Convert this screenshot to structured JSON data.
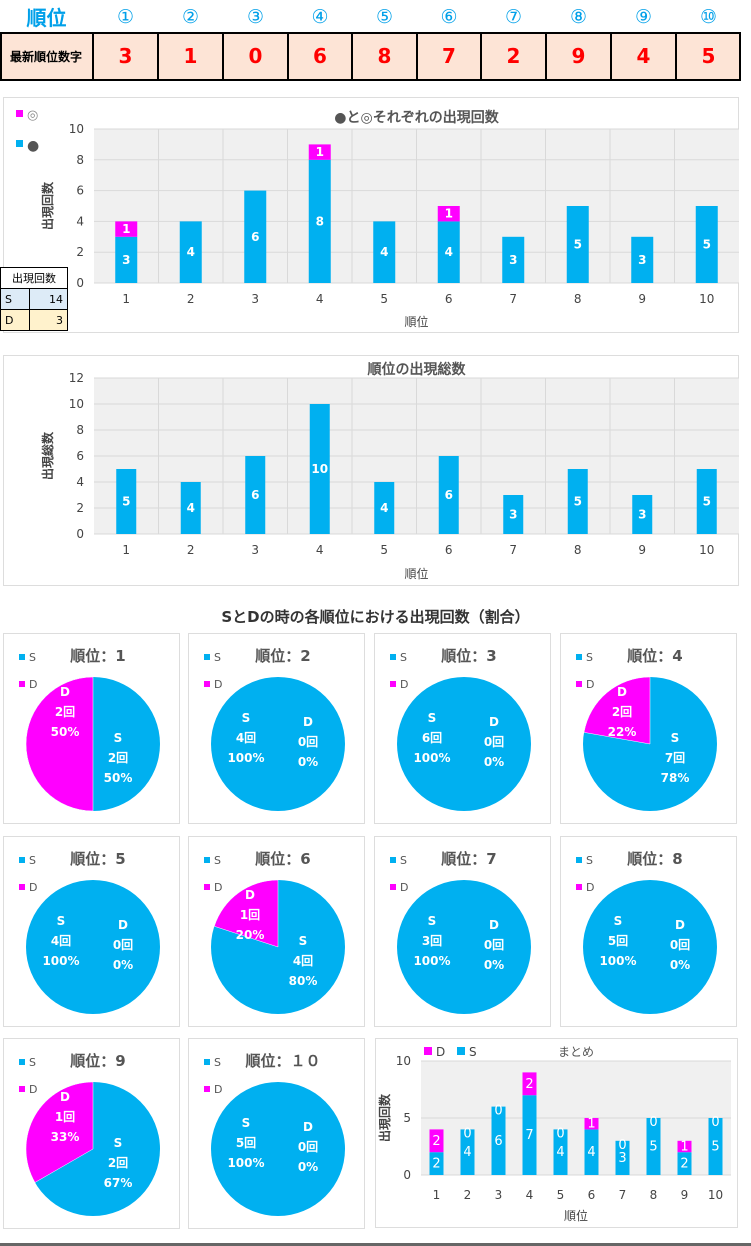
{
  "header": {
    "rank_label": "順位",
    "positions": [
      "①",
      "②",
      "③",
      "④",
      "⑤",
      "⑥",
      "⑦",
      "⑧",
      "⑨",
      "⑩"
    ],
    "latest_label": "最新順位数字",
    "latest_digits": [
      "3",
      "1",
      "0",
      "6",
      "8",
      "7",
      "2",
      "9",
      "4",
      "5"
    ]
  },
  "colors": {
    "s": "#00b0f0",
    "d": "#ff00ff",
    "accent": "#00a0e9",
    "digit": "#ff0000"
  },
  "mini_table": {
    "title": "出現回数",
    "rows": [
      {
        "label": "S",
        "value": "14"
      },
      {
        "label": "D",
        "value": "3"
      }
    ]
  },
  "pies_title": "SとDの時の各順位における出現回数（割合）",
  "chart_data": [
    {
      "type": "bar",
      "stacked": true,
      "title": "●と◎それぞれの出現回数",
      "xlabel": "順位",
      "ylabel": "出現回数",
      "ylim": [
        0,
        10
      ],
      "yticks": [
        0,
        2,
        4,
        6,
        8,
        10
      ],
      "categories": [
        "1",
        "2",
        "3",
        "4",
        "5",
        "6",
        "7",
        "8",
        "9",
        "10"
      ],
      "legend": [
        "◎",
        "●"
      ],
      "legend_position": "top-left",
      "series": [
        {
          "name": "●",
          "color": "#00b0f0",
          "values": [
            3,
            4,
            6,
            8,
            4,
            4,
            3,
            5,
            3,
            5
          ]
        },
        {
          "name": "◎",
          "color": "#ff00ff",
          "values": [
            1,
            0,
            0,
            1,
            0,
            1,
            0,
            0,
            0,
            0
          ]
        }
      ]
    },
    {
      "type": "bar",
      "title": "順位の出現総数",
      "xlabel": "順位",
      "ylabel": "出現総数",
      "ylim": [
        0,
        12
      ],
      "yticks": [
        0,
        2,
        4,
        6,
        8,
        10,
        12
      ],
      "categories": [
        "1",
        "2",
        "3",
        "4",
        "5",
        "6",
        "7",
        "8",
        "9",
        "10"
      ],
      "series": [
        {
          "name": "出現総数",
          "color": "#00b0f0",
          "values": [
            5,
            4,
            6,
            10,
            4,
            6,
            3,
            5,
            3,
            5
          ]
        }
      ]
    },
    {
      "type": "pie",
      "pies": [
        {
          "title": "順位：1",
          "s": 2,
          "d": 2,
          "s_pct": "50%",
          "d_pct": "50%"
        },
        {
          "title": "順位：2",
          "s": 4,
          "d": 0,
          "s_pct": "100%",
          "d_pct": "0%"
        },
        {
          "title": "順位：3",
          "s": 6,
          "d": 0,
          "s_pct": "100%",
          "d_pct": "0%"
        },
        {
          "title": "順位：4",
          "s": 7,
          "d": 2,
          "s_pct": "78%",
          "d_pct": "22%"
        },
        {
          "title": "順位：5",
          "s": 4,
          "d": 0,
          "s_pct": "100%",
          "d_pct": "0%"
        },
        {
          "title": "順位：6",
          "s": 4,
          "d": 1,
          "s_pct": "80%",
          "d_pct": "20%"
        },
        {
          "title": "順位：7",
          "s": 3,
          "d": 0,
          "s_pct": "100%",
          "d_pct": "0%"
        },
        {
          "title": "順位：8",
          "s": 5,
          "d": 0,
          "s_pct": "100%",
          "d_pct": "0%"
        },
        {
          "title": "順位：9",
          "s": 2,
          "d": 1,
          "s_pct": "67%",
          "d_pct": "33%"
        },
        {
          "title": "順位：１０",
          "s": 5,
          "d": 0,
          "s_pct": "100%",
          "d_pct": "0%"
        }
      ],
      "legend": [
        "S",
        "D"
      ],
      "unit": "回"
    },
    {
      "type": "bar",
      "stacked": true,
      "title": "まとめ",
      "xlabel": "順位",
      "ylabel": "出現回数",
      "ylim": [
        0,
        10
      ],
      "yticks": [
        0,
        5,
        10
      ],
      "categories": [
        "1",
        "2",
        "3",
        "4",
        "5",
        "6",
        "7",
        "8",
        "9",
        "10"
      ],
      "legend": [
        "D",
        "S"
      ],
      "series": [
        {
          "name": "S",
          "color": "#00b0f0",
          "values": [
            2,
            4,
            6,
            7,
            4,
            4,
            3,
            5,
            2,
            5
          ]
        },
        {
          "name": "D",
          "color": "#ff00ff",
          "values": [
            2,
            0,
            0,
            2,
            0,
            1,
            0,
            0,
            1,
            0
          ]
        }
      ]
    }
  ]
}
